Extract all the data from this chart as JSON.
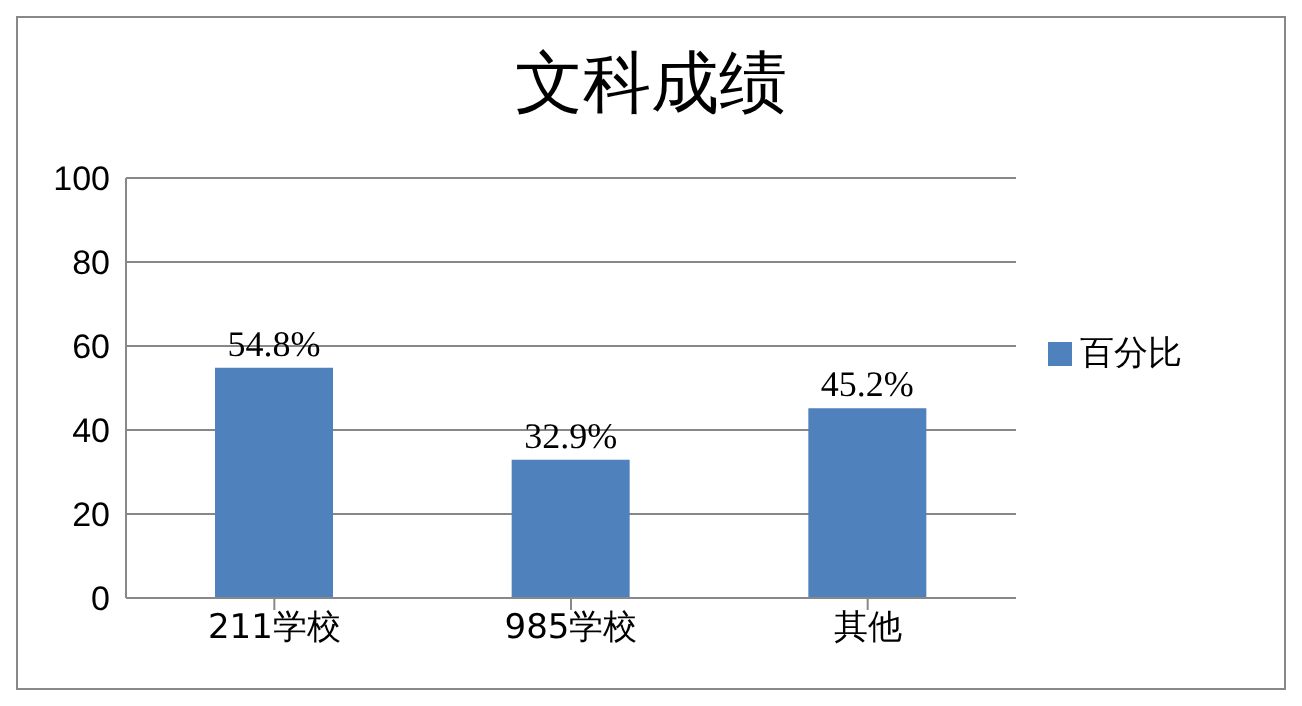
{
  "chart_data": {
    "type": "bar",
    "title": "文科成绩",
    "categories": [
      "211学校",
      "985学校",
      "其他"
    ],
    "series": [
      {
        "name": "百分比",
        "color": "#4f81bd",
        "values": [
          54.8,
          32.9,
          45.2
        ],
        "value_labels": [
          "54.8%",
          "32.9%",
          "45.2%"
        ]
      }
    ],
    "ylim": [
      0,
      100
    ],
    "yticks": [
      0,
      20,
      40,
      60,
      80,
      100
    ],
    "grid": "y",
    "legend": "right"
  }
}
